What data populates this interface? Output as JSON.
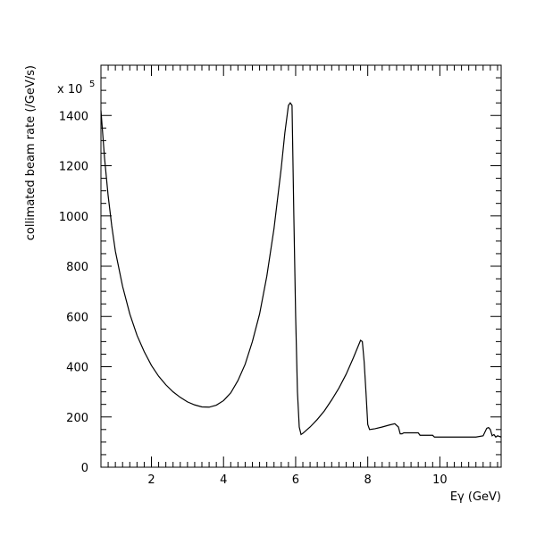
{
  "chart_data": {
    "type": "line",
    "title": "",
    "xlabel": "Eγ (GeV)",
    "ylabel": "collimated beam rate (/GeV/s)",
    "y_multiplier_label": "x 10",
    "y_multiplier_exponent": "5",
    "xlim": [
      0.6,
      11.7
    ],
    "ylim": [
      0,
      1600
    ],
    "x_ticks": [
      2,
      4,
      6,
      8,
      10
    ],
    "y_ticks": [
      0,
      200,
      400,
      600,
      800,
      1000,
      1200,
      1400
    ],
    "grid": false,
    "line_color": "#000000",
    "series": [
      {
        "x": [
          0.6,
          0.7,
          0.8,
          0.9,
          1.0,
          1.2,
          1.4,
          1.6,
          1.8,
          2.0,
          2.2,
          2.4,
          2.6,
          2.8,
          3.0,
          3.2,
          3.4,
          3.6,
          3.8,
          4.0,
          4.2,
          4.4,
          4.6,
          4.8,
          5.0,
          5.2,
          5.4,
          5.6,
          5.7,
          5.8,
          5.85,
          5.9,
          5.95,
          6.0,
          6.05,
          6.1,
          6.15,
          6.2,
          6.4,
          6.6,
          6.8,
          7.0,
          7.2,
          7.4,
          7.6,
          7.8,
          7.85,
          7.9,
          7.95,
          8.0,
          8.05,
          8.2,
          8.4,
          8.6,
          8.75,
          8.85,
          8.9,
          8.95,
          9.0,
          9.2,
          9.4,
          9.45,
          9.5,
          9.7,
          9.8,
          9.85,
          10.0,
          10.5,
          11.0,
          11.2,
          11.3,
          11.35,
          11.4,
          11.45,
          11.5,
          11.55,
          11.6,
          11.7
        ],
        "y": [
          1420,
          1230,
          1080,
          960,
          860,
          720,
          610,
          525,
          460,
          405,
          362,
          328,
          300,
          278,
          260,
          248,
          240,
          239,
          247,
          265,
          296,
          345,
          410,
          500,
          610,
          760,
          950,
          1190,
          1330,
          1440,
          1450,
          1440,
          1000,
          600,
          300,
          160,
          130,
          135,
          160,
          190,
          225,
          268,
          315,
          370,
          435,
          505,
          500,
          420,
          300,
          170,
          150,
          153,
          160,
          168,
          173,
          160,
          133,
          133,
          137,
          137,
          137,
          127,
          127,
          127,
          127,
          120,
          120,
          120,
          120,
          125,
          155,
          158,
          150,
          125,
          130,
          120,
          125,
          120
        ]
      }
    ]
  }
}
